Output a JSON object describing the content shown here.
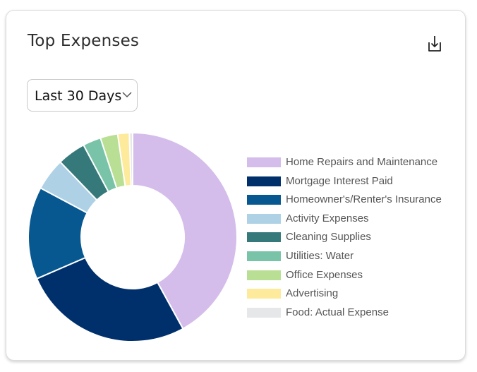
{
  "card": {
    "title": "Top Expenses",
    "download_icon": "download-icon",
    "range": {
      "selected": "Last 30 Days",
      "icon": "chevron-down-icon"
    }
  },
  "chart_data": {
    "type": "pie",
    "subtype": "donut",
    "title": "",
    "categories": [
      "Home Repairs and Maintenance",
      "Mortgage Interest Paid",
      "Homeowner's/Renter's Insurance",
      "Activity Expenses",
      "Cleaning Supplies",
      "Utilities: Water",
      "Office Expenses",
      "Advertising",
      "Food: Actual Expense"
    ],
    "values": [
      42.0,
      26.5,
      14.3,
      5.0,
      4.4,
      2.8,
      2.7,
      1.8,
      0.5
    ],
    "colors": [
      "#d4bdea",
      "#00306b",
      "#075891",
      "#aed1e6",
      "#35797b",
      "#79c4a8",
      "#b8df93",
      "#fdea9a",
      "#e6e7e8"
    ],
    "legend_position": "right"
  }
}
